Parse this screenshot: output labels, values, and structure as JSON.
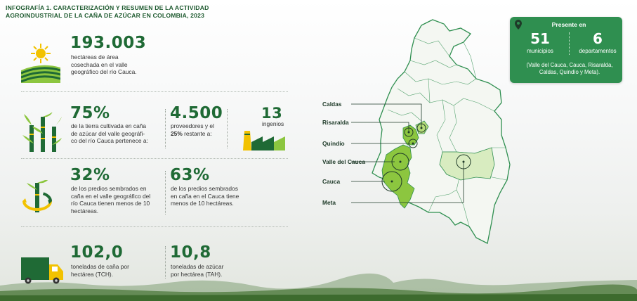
{
  "title": {
    "line1": "INFOGRAFÍA 1. CARACTERIZACIÓN Y RESUMEN DE LA ACTIVIDAD",
    "line2": "AGROINDUSTRIAL DE LA CAÑA DE AZÚCAR EN COLOMBIA, 2023"
  },
  "stats": {
    "area": {
      "value": "193.003",
      "lines": [
        "hectáreas de área",
        "cosechada en el valle",
        "geográfico del río Cauca."
      ]
    },
    "cultivated": {
      "value": "75%",
      "lines": [
        "de la tierra cultivada en caña",
        "de azúcar del valle geográfi-",
        "co del río Cauca pertenece a:"
      ]
    },
    "suppliers": {
      "value": "4.500",
      "line1": "proveedores y el",
      "line2_bold": "25%",
      "line2_rest": " restante a:"
    },
    "mills": {
      "value": "13",
      "label": "ingenios"
    },
    "predios_valle": {
      "value": "32%",
      "lines": [
        "de los predios sembrados en",
        "caña en el valle geográfico del",
        "río Cauca tienen menos de 10",
        "hectáreas."
      ]
    },
    "predios_cauca": {
      "value": "63%",
      "lines": [
        "de los predios sembrados",
        "en caña en el Cauca tiene",
        "menos de 10 hectáreas."
      ]
    },
    "tch": {
      "value": "102,0",
      "lines": [
        "toneladas de caña por",
        "hectárea (TCH)."
      ]
    },
    "tah": {
      "value": "10,8",
      "lines": [
        "toneladas de azúcar",
        "por hectárea (TAH)."
      ]
    }
  },
  "presence": {
    "header": "Presente en",
    "municipalities_value": "51",
    "municipalities_label": "municipios",
    "departments_value": "6",
    "departments_label": "departamentos",
    "note_lines": [
      "(Valle del Cauca, Cauca, Risaralda,",
      "Caldas, Quindío y Meta)."
    ]
  },
  "map_labels": {
    "caldas": "Caldas",
    "risaralda": "Risaralda",
    "quindio": "Quindío",
    "valle": "Valle del Cauca",
    "cauca": "Cauca",
    "meta": "Meta"
  },
  "colors": {
    "primary_green": "#1f6a35",
    "box_green": "#2f8f50",
    "light_green": "#8cc63f",
    "pale_green": "#d8ecc0",
    "yellow": "#f2c200"
  },
  "icons": [
    "sun-field-icon",
    "sugarcane-icon",
    "factory-icon",
    "cane-cycle-icon",
    "truck-icon",
    "location-pin-icon"
  ]
}
